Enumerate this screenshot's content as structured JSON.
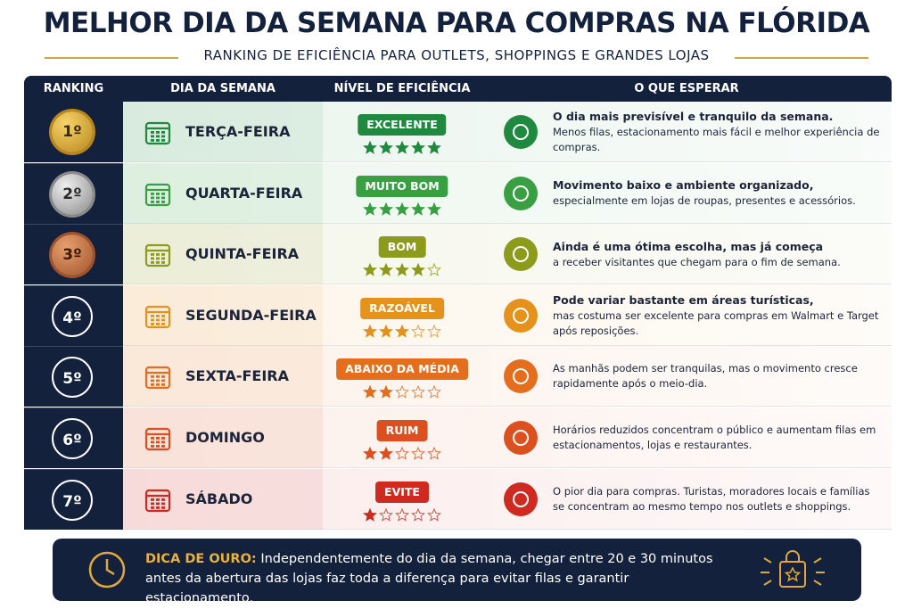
{
  "header": {
    "title": "MELHOR DIA DA SEMANA PARA COMPRAS NA FLÓRIDA",
    "subtitle": "RANKING DE EFICIÊNCIA PARA OUTLETS, SHOPPINGS E GRANDES LOJAS"
  },
  "table": {
    "columns": [
      "RANKING",
      "DIA DA SEMANA",
      "NÍVEL DE EFICIÊNCIA",
      "O QUE ESPERAR"
    ],
    "rating_max": 5,
    "rows": [
      {
        "rank": "1º",
        "day": "TERÇA-FEIRA",
        "level": "EXCELENTE",
        "stars": 5,
        "lead": "O dia mais previsível e tranquilo da semana.",
        "text": "Menos filas, estacionamento mais fácil e melhor experiência de compras.",
        "color": "#1f8a3f"
      },
      {
        "rank": "2º",
        "day": "QUARTA-FEIRA",
        "level": "MUITO BOM",
        "stars": 5,
        "lead": "Movimento baixo e ambiente organizado,",
        "text": "especialmente em lojas de roupas, presentes e acessórios.",
        "color": "#38a043"
      },
      {
        "rank": "3º",
        "day": "QUINTA-FEIRA",
        "level": "BOM",
        "stars": 4,
        "lead": "Ainda é uma ótima escolha, mas já começa",
        "text": "a receber visitantes que chegam para o fim de semana.",
        "color": "#8c9b1c"
      },
      {
        "rank": "4º",
        "day": "SEGUNDA-FEIRA",
        "level": "RAZOÁVEL",
        "stars": 3,
        "lead": "Pode variar bastante em áreas turísticas,",
        "text": "mas costuma ser excelente para compras em Walmart e Target após reposições.",
        "color": "#e4921c"
      },
      {
        "rank": "5º",
        "day": "SEXTA-FEIRA",
        "level": "ABAIXO DA MÉDIA",
        "stars": 2,
        "text": "As manhãs podem ser tranquilas, mas o movimento cresce rapidamente após o meio-dia.",
        "color": "#e46e1e"
      },
      {
        "rank": "6º",
        "day": "DOMINGO",
        "level": "RUIM",
        "stars": 2,
        "text": "Horários reduzidos concentram o público e aumentam filas em estacionamentos, lojas e restaurantes.",
        "color": "#dc4f1e"
      },
      {
        "rank": "7º",
        "day": "SÁBADO",
        "level": "EVITE",
        "stars": 1,
        "text": "O pior dia para compras. Turistas, moradores locais e famílias se concentram ao mesmo tempo nos outlets e shoppings.",
        "color": "#cf2a20"
      }
    ]
  },
  "footer": {
    "label": "DICA DE OURO:",
    "text": "Independentemente do dia da semana, chegar entre 20 e 30 minutos antes da abertura das lojas faz toda a diferença para evitar filas e garantir estacionamento."
  }
}
